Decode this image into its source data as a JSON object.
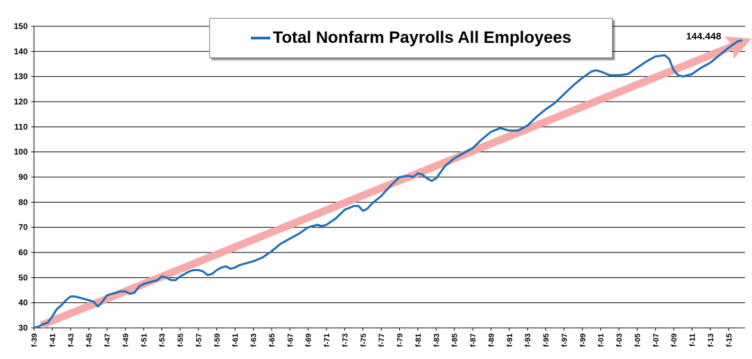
{
  "chart_data": {
    "type": "line",
    "title": "",
    "xlabel": "",
    "ylabel": "",
    "ylim": [
      30,
      150
    ],
    "yticks": [
      30,
      40,
      50,
      60,
      70,
      80,
      90,
      100,
      110,
      120,
      130,
      140,
      150
    ],
    "xlim": [
      1939,
      2016.8
    ],
    "xticks": [
      "f-39",
      "f-41",
      "f-43",
      "f-45",
      "f-47",
      "f-49",
      "f-51",
      "f-53",
      "f-55",
      "f-57",
      "f-59",
      "f-61",
      "f-63",
      "f-65",
      "f-67",
      "f-69",
      "f-71",
      "f-73",
      "f-75",
      "f-77",
      "f-79",
      "f-81",
      "f-83",
      "f-85",
      "f-87",
      "f-89",
      "f-91",
      "f-93",
      "f-95",
      "f-97",
      "f-99",
      "f-01",
      "f-03",
      "f-05",
      "f-07",
      "f-09",
      "f-11",
      "f-13",
      "f-15"
    ],
    "grid": true,
    "legend": "top-center",
    "series": [
      {
        "name": "Total Nonfarm Payrolls All Employees",
        "color": "#1f6fb5",
        "x": [
          1939.0,
          1939.5,
          1940.0,
          1940.5,
          1941.0,
          1941.5,
          1942.0,
          1942.5,
          1943.0,
          1943.5,
          1944.0,
          1944.5,
          1945.0,
          1945.5,
          1946.0,
          1946.5,
          1947.0,
          1947.5,
          1948.0,
          1948.5,
          1949.0,
          1949.5,
          1950.0,
          1950.5,
          1951.0,
          1951.5,
          1952.0,
          1952.5,
          1953.0,
          1953.5,
          1954.0,
          1954.5,
          1955.0,
          1955.5,
          1956.0,
          1956.5,
          1957.0,
          1957.5,
          1958.0,
          1958.5,
          1959.0,
          1959.5,
          1960.0,
          1960.5,
          1961.0,
          1961.5,
          1962.0,
          1963.0,
          1964.0,
          1965.0,
          1966.0,
          1967.0,
          1968.0,
          1969.0,
          1970.0,
          1970.5,
          1971.0,
          1972.0,
          1973.0,
          1974.0,
          1974.5,
          1975.0,
          1975.5,
          1976.0,
          1977.0,
          1978.0,
          1979.0,
          1980.0,
          1980.5,
          1981.0,
          1981.5,
          1982.0,
          1982.5,
          1983.0,
          1984.0,
          1985.0,
          1986.0,
          1987.0,
          1988.0,
          1989.0,
          1990.0,
          1990.5,
          1991.0,
          1992.0,
          1993.0,
          1994.0,
          1995.0,
          1996.0,
          1997.0,
          1998.0,
          1999.0,
          2000.0,
          2000.5,
          2001.0,
          2002.0,
          2003.0,
          2004.0,
          2005.0,
          2006.0,
          2007.0,
          2008.0,
          2008.5,
          2009.0,
          2009.5,
          2010.0,
          2011.0,
          2012.0,
          2013.0,
          2014.0,
          2015.0,
          2016.0,
          2016.5
        ],
        "values": [
          30.0,
          30.5,
          31.5,
          32.0,
          34.5,
          37.5,
          39.0,
          41.0,
          42.5,
          42.5,
          42.0,
          41.5,
          41.0,
          40.5,
          38.5,
          40.5,
          43.0,
          43.5,
          44.0,
          44.5,
          44.5,
          43.5,
          44.0,
          46.5,
          47.5,
          48.0,
          48.5,
          49.0,
          50.5,
          50.0,
          49.0,
          49.0,
          50.5,
          51.5,
          52.5,
          53.0,
          53.0,
          52.5,
          51.0,
          51.5,
          53.0,
          54.0,
          54.5,
          53.5,
          54.0,
          55.0,
          55.5,
          56.5,
          58.0,
          60.5,
          63.5,
          65.5,
          67.5,
          70.0,
          71.0,
          70.5,
          71.0,
          73.5,
          77.0,
          78.5,
          78.5,
          76.5,
          77.5,
          79.5,
          82.5,
          86.5,
          90.0,
          90.5,
          90.0,
          91.5,
          91.0,
          89.5,
          88.5,
          89.5,
          94.5,
          97.5,
          99.5,
          101.5,
          105.0,
          108.0,
          109.5,
          109.0,
          108.5,
          108.5,
          110.5,
          114.0,
          117.0,
          119.5,
          123.0,
          126.5,
          129.5,
          132.0,
          132.5,
          132.0,
          130.5,
          130.5,
          131.0,
          133.5,
          136.0,
          138.0,
          138.5,
          137.0,
          132.5,
          130.5,
          130.0,
          131.0,
          133.5,
          135.5,
          138.5,
          141.5,
          144.0,
          144.448
        ]
      }
    ],
    "annotations": {
      "last_value": "144.448"
    }
  }
}
